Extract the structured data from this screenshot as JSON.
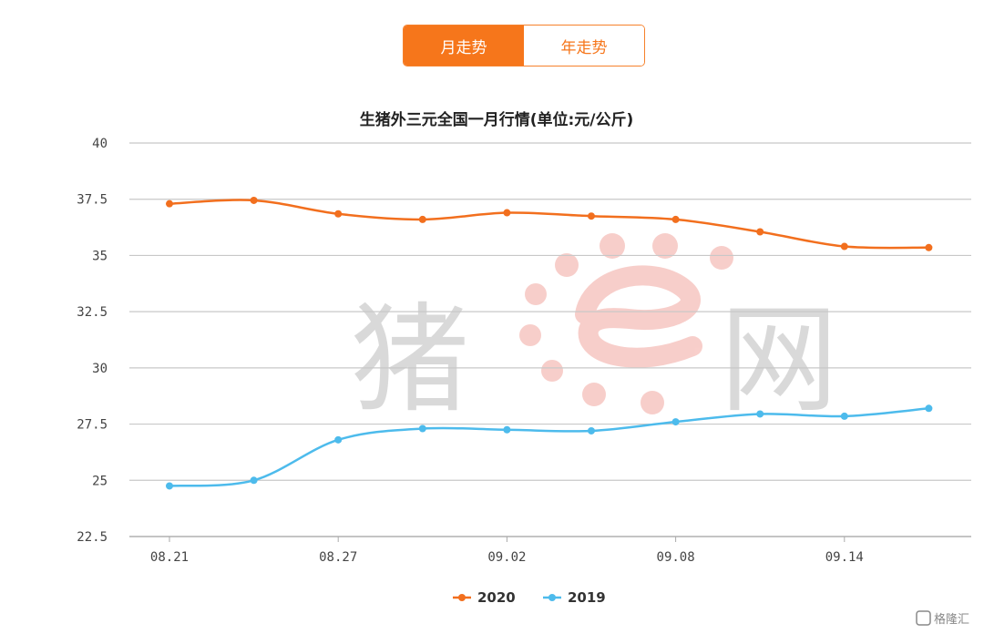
{
  "tabs": [
    {
      "label": "月走势",
      "active": true
    },
    {
      "label": "年走势",
      "active": false
    }
  ],
  "watermark": {
    "left": "猪",
    "right": "网",
    "accent_color": "#f2a7a0"
  },
  "corner_logo": {
    "text": "格隆汇",
    "icon": "g-logo-icon"
  },
  "colors": {
    "accent": "#f6761b",
    "s2020": "#f26f1e",
    "s2019": "#4dbbec"
  },
  "chart_data": {
    "type": "line",
    "title": "生猪外三元全国一月行情(单位:元/公斤)",
    "xlabel": "",
    "ylabel": "",
    "ylim": [
      22.5,
      40
    ],
    "yticks": [
      "40",
      "37.5",
      "35",
      "32.5",
      "30",
      "27.5",
      "25",
      "22.5"
    ],
    "ytick_values": [
      40,
      37.5,
      35,
      32.5,
      30,
      27.5,
      25,
      22.5
    ],
    "xtick_labels": [
      "08.21",
      "08.27",
      "09.02",
      "09.08",
      "09.14"
    ],
    "xtick_index": [
      0,
      2,
      4,
      6,
      8
    ],
    "grid": true,
    "legend": "bottom-center",
    "point_count": 10,
    "series": [
      {
        "name": "2020",
        "color": "#f26f1e",
        "values": [
          37.3,
          37.45,
          36.85,
          36.6,
          36.9,
          36.75,
          36.6,
          36.05,
          35.4,
          35.35
        ]
      },
      {
        "name": "2019",
        "color": "#4dbbec",
        "values": [
          24.75,
          25.0,
          26.8,
          27.3,
          27.25,
          27.2,
          27.6,
          27.95,
          27.85,
          28.2
        ]
      }
    ]
  }
}
